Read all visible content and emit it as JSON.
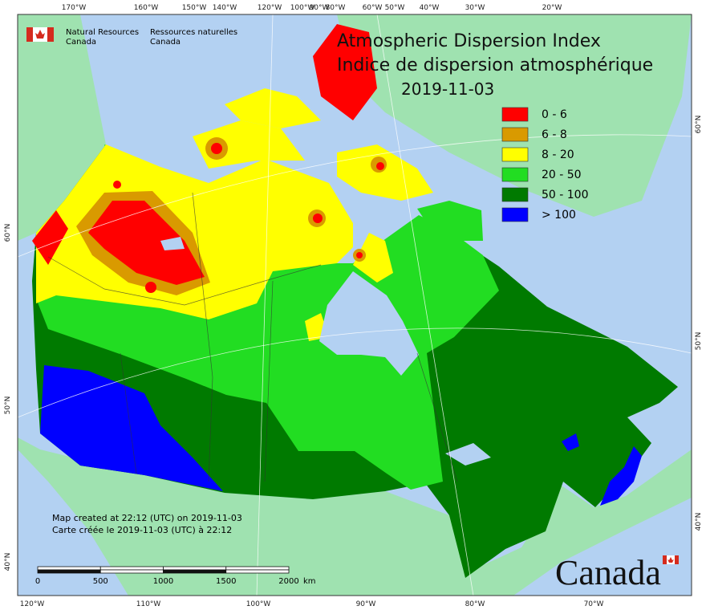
{
  "header": {
    "title": "Atmospheric Dispersion Index",
    "title_fr": "Indice de dispersion atmosphérique",
    "date": "2019-11-03"
  },
  "agency": {
    "en": [
      "Natural Resources",
      "Canada"
    ],
    "fr": [
      "Ressources naturelles",
      "Canada"
    ]
  },
  "legend": [
    {
      "label": "0 - 6",
      "color": "#ff0000"
    },
    {
      "label": "6 - 8",
      "color": "#d99a00"
    },
    {
      "label": "8 - 20",
      "color": "#ffff00"
    },
    {
      "label": "20 - 50",
      "color": "#22dd22"
    },
    {
      "label": "50 - 100",
      "color": "#007a00"
    },
    {
      "label": "> 100",
      "color": "#0000ff"
    }
  ],
  "graticule": {
    "top": [
      "170°W",
      "160°W",
      "150°W",
      "140°W",
      "120°W",
      "100°W",
      "90°W",
      "80°W",
      "60°W",
      "50°W",
      "40°W",
      "30°W",
      "20°W"
    ],
    "bottom": [
      "120°W",
      "110°W",
      "100°W",
      "90°W",
      "80°W",
      "70°W"
    ],
    "left": [
      "60°N",
      "50°N",
      "40°N"
    ],
    "right": [
      "60°N",
      "50°N",
      "40°N"
    ]
  },
  "notes": [
    "Map created at 22:12 (UTC) on 2019-11-03",
    "Carte créée le 2019-11-03 (UTC) à 22:12"
  ],
  "scale_bar": {
    "ticks": [
      0,
      500,
      1000,
      1500,
      2000
    ],
    "unit": "km"
  },
  "wordmark": "Canada"
}
